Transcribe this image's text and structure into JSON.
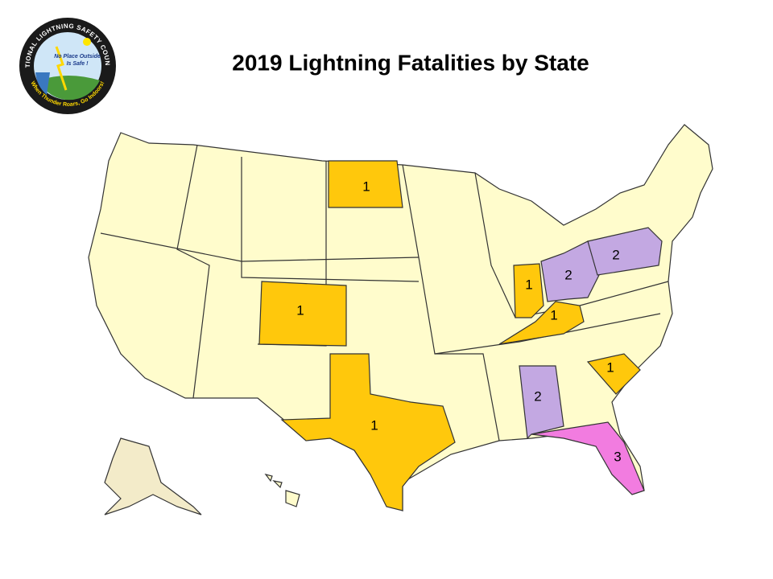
{
  "title": "2019 Lightning Fatalities by State",
  "logo": {
    "ring_top": "NATIONAL LIGHTNING SAFETY COUNCIL",
    "slogan_1": "No Place Outside",
    "slogan_2": "Is Safe !",
    "ring_bottom": "When Thunder Roars, Go Indoors!"
  },
  "states": [
    {
      "value": 1,
      "color": "#ffc80c"
    },
    {
      "value": 1,
      "color": "#ffc80c"
    },
    {
      "value": 1,
      "color": "#ffc80c"
    },
    {
      "value": 1,
      "color": "#ffc80c"
    },
    {
      "value": 2,
      "color": "#c3a8e2"
    },
    {
      "value": 2,
      "color": "#c3a8e2"
    },
    {
      "value": 1,
      "color": "#ffc80c"
    },
    {
      "value": 1,
      "color": "#ffc80c"
    },
    {
      "value": 2,
      "color": "#c3a8e2"
    },
    {
      "value": 3,
      "color": "#f27ce0"
    }
  ]
}
